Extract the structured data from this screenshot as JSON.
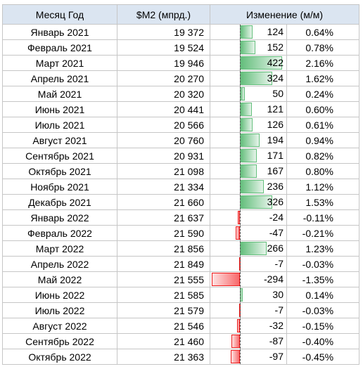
{
  "table": {
    "headers": {
      "month": "Месяц Год",
      "m2": "$M2 (мпрд.)",
      "change": "Изменение (м/м)"
    },
    "colors": {
      "positive_bar": "#63be7b",
      "negative_bar": "#f8696b",
      "header_bg": "#dbe5f1"
    },
    "rows": [
      {
        "month": "Январь 2021",
        "m2": "19 372",
        "change": "124",
        "change_value": 124,
        "pct": "0.64%"
      },
      {
        "month": "Февраль 2021",
        "m2": "19 524",
        "change": "152",
        "change_value": 152,
        "pct": "0.78%"
      },
      {
        "month": "Март 2021",
        "m2": "19 946",
        "change": "422",
        "change_value": 422,
        "pct": "2.16%"
      },
      {
        "month": "Апрель 2021",
        "m2": "20 270",
        "change": "324",
        "change_value": 324,
        "pct": "1.62%"
      },
      {
        "month": "Май 2021",
        "m2": "20 320",
        "change": "50",
        "change_value": 50,
        "pct": "0.24%"
      },
      {
        "month": "Июнь 2021",
        "m2": "20 441",
        "change": "121",
        "change_value": 121,
        "pct": "0.60%"
      },
      {
        "month": "Июль 2021",
        "m2": "20 566",
        "change": "126",
        "change_value": 126,
        "pct": "0.61%"
      },
      {
        "month": "Август 2021",
        "m2": "20 760",
        "change": "194",
        "change_value": 194,
        "pct": "0.94%"
      },
      {
        "month": "Сентябрь 2021",
        "m2": "20 931",
        "change": "171",
        "change_value": 171,
        "pct": "0.82%"
      },
      {
        "month": "Октябрь 2021",
        "m2": "21 098",
        "change": "167",
        "change_value": 167,
        "pct": "0.80%"
      },
      {
        "month": "Ноябрь 2021",
        "m2": "21 334",
        "change": "236",
        "change_value": 236,
        "pct": "1.12%"
      },
      {
        "month": "Декабрь 2021",
        "m2": "21 660",
        "change": "326",
        "change_value": 326,
        "pct": "1.53%"
      },
      {
        "month": "Январь 2022",
        "m2": "21 637",
        "change": "-24",
        "change_value": -24,
        "pct": "-0.11%"
      },
      {
        "month": "Февраль 2022",
        "m2": "21 590",
        "change": "-47",
        "change_value": -47,
        "pct": "-0.21%"
      },
      {
        "month": "Март 2022",
        "m2": "21 856",
        "change": "266",
        "change_value": 266,
        "pct": "1.23%"
      },
      {
        "month": "Апрель 2022",
        "m2": "21 849",
        "change": "-7",
        "change_value": -7,
        "pct": "-0.03%"
      },
      {
        "month": "Май 2022",
        "m2": "21 555",
        "change": "-294",
        "change_value": -294,
        "pct": "-1.35%"
      },
      {
        "month": "Июнь 2022",
        "m2": "21 585",
        "change": "30",
        "change_value": 30,
        "pct": "0.14%"
      },
      {
        "month": "Июль 2022",
        "m2": "21 579",
        "change": "-7",
        "change_value": -7,
        "pct": "-0.03%"
      },
      {
        "month": "Август 2022",
        "m2": "21 546",
        "change": "-32",
        "change_value": -32,
        "pct": "-0.15%"
      },
      {
        "month": "Сентябрь 2022",
        "m2": "21 460",
        "change": "-87",
        "change_value": -87,
        "pct": "-0.40%"
      },
      {
        "month": "Октябрь 2022",
        "m2": "21 363",
        "change": "-97",
        "change_value": -97,
        "pct": "-0.45%"
      }
    ]
  }
}
